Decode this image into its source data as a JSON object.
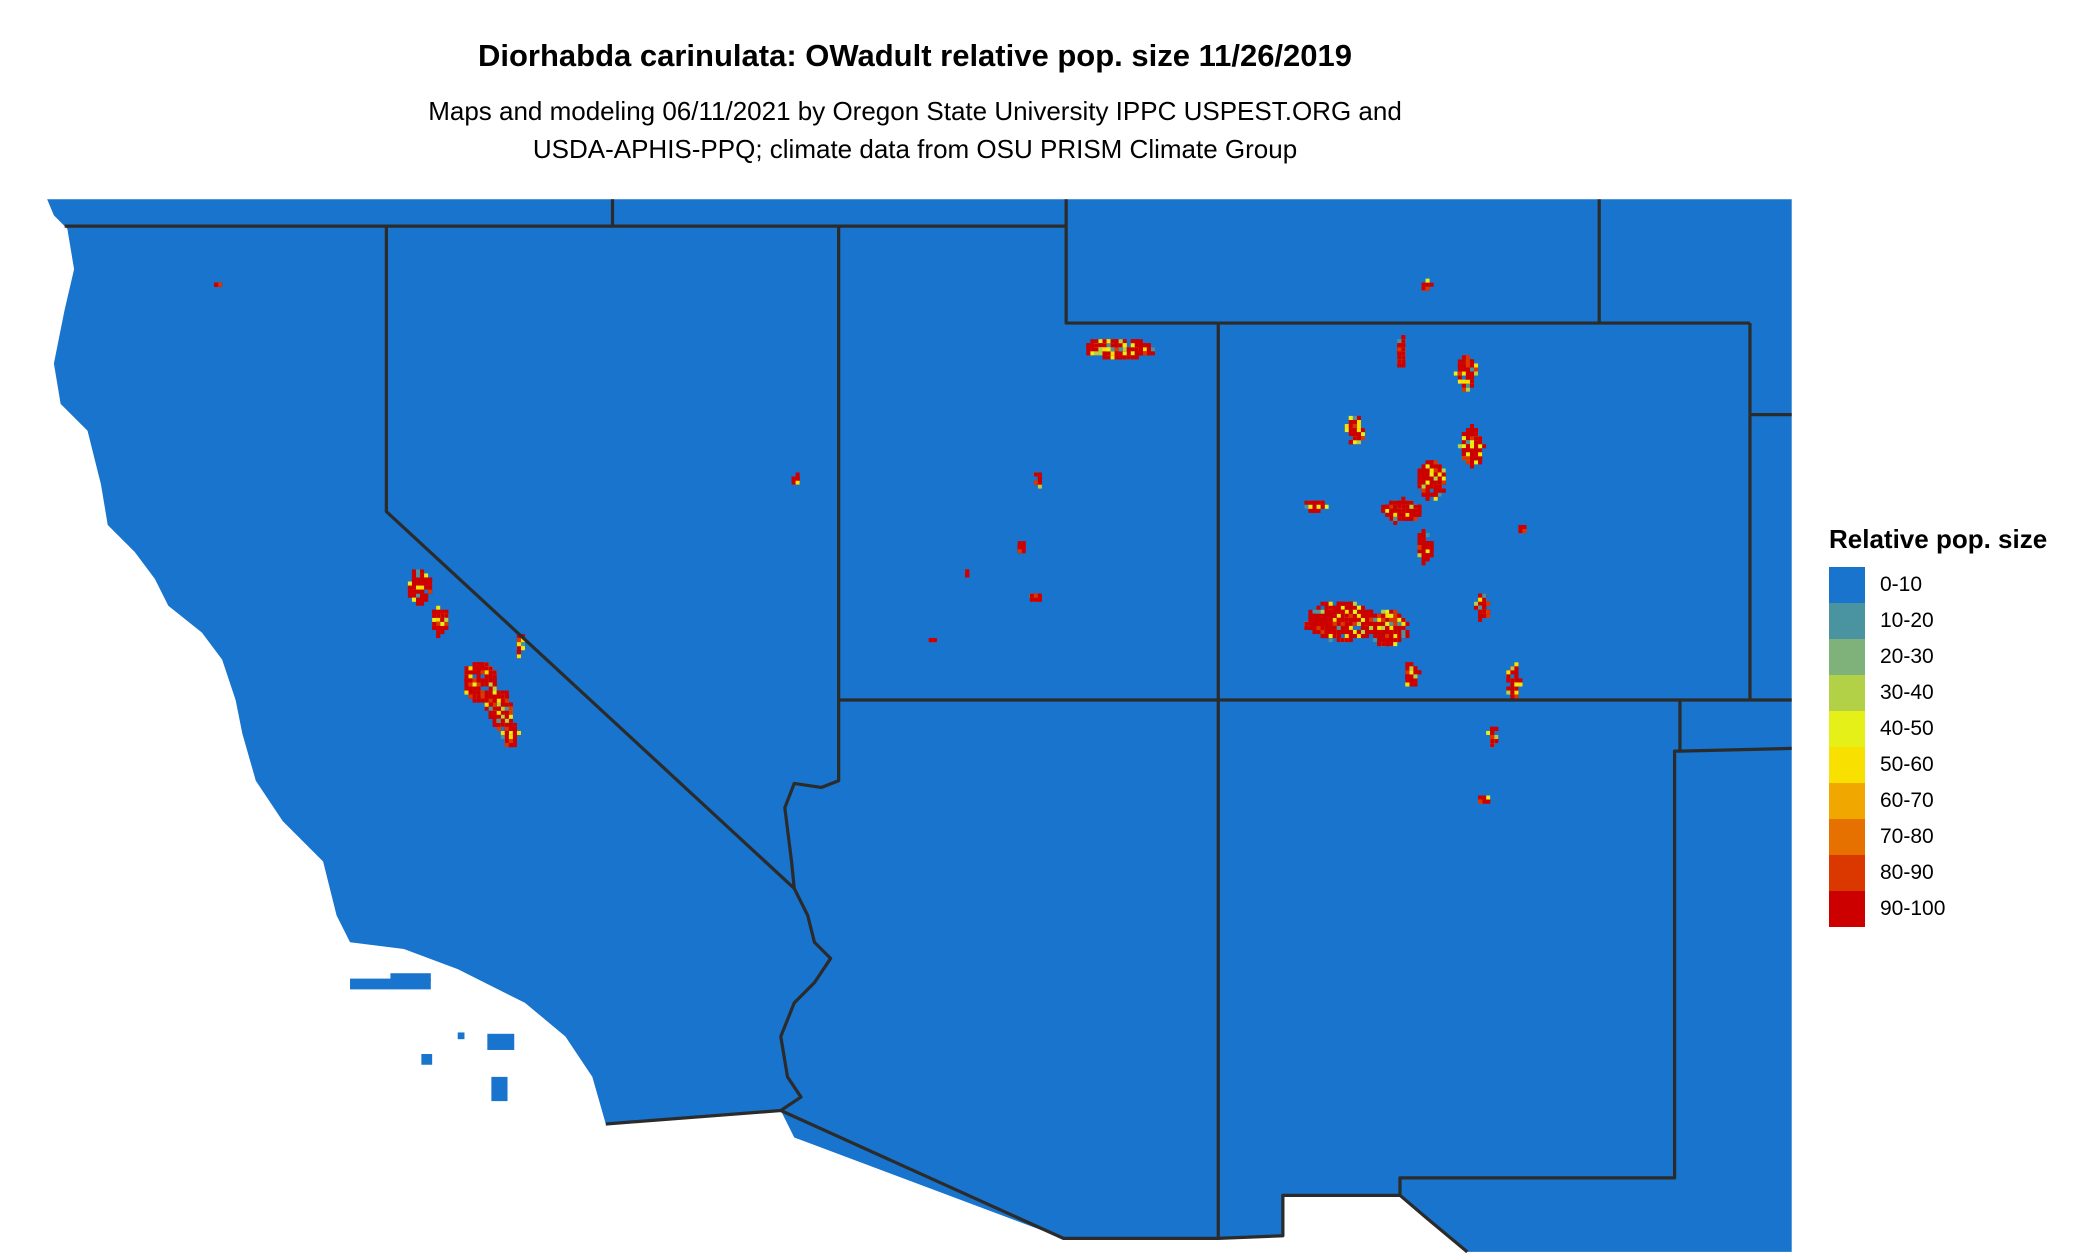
{
  "title": "Diorhabda carinulata: OWadult relative pop. size 11/26/2019",
  "subtitle_lines": [
    "Maps and modeling 06/11/2021 by Oregon State University IPPC USPEST.ORG and",
    "USDA-APHIS-PPQ; climate data from OSU PRISM Climate Group"
  ],
  "legend": {
    "title": "Relative pop. size",
    "items": [
      {
        "label": "0-10",
        "color": "#1874cd"
      },
      {
        "label": "10-20",
        "color": "#4a93a0"
      },
      {
        "label": "20-30",
        "color": "#7fb27a"
      },
      {
        "label": "30-40",
        "color": "#b2d147"
      },
      {
        "label": "40-50",
        "color": "#e5f019"
      },
      {
        "label": "50-60",
        "color": "#f8e100"
      },
      {
        "label": "60-70",
        "color": "#f0a800"
      },
      {
        "label": "70-80",
        "color": "#e67100"
      },
      {
        "label": "80-90",
        "color": "#db3800"
      },
      {
        "label": "90-100",
        "color": "#cd0000"
      }
    ]
  },
  "colors": {
    "border": "#2b2b2b",
    "background": "#ffffff"
  }
}
